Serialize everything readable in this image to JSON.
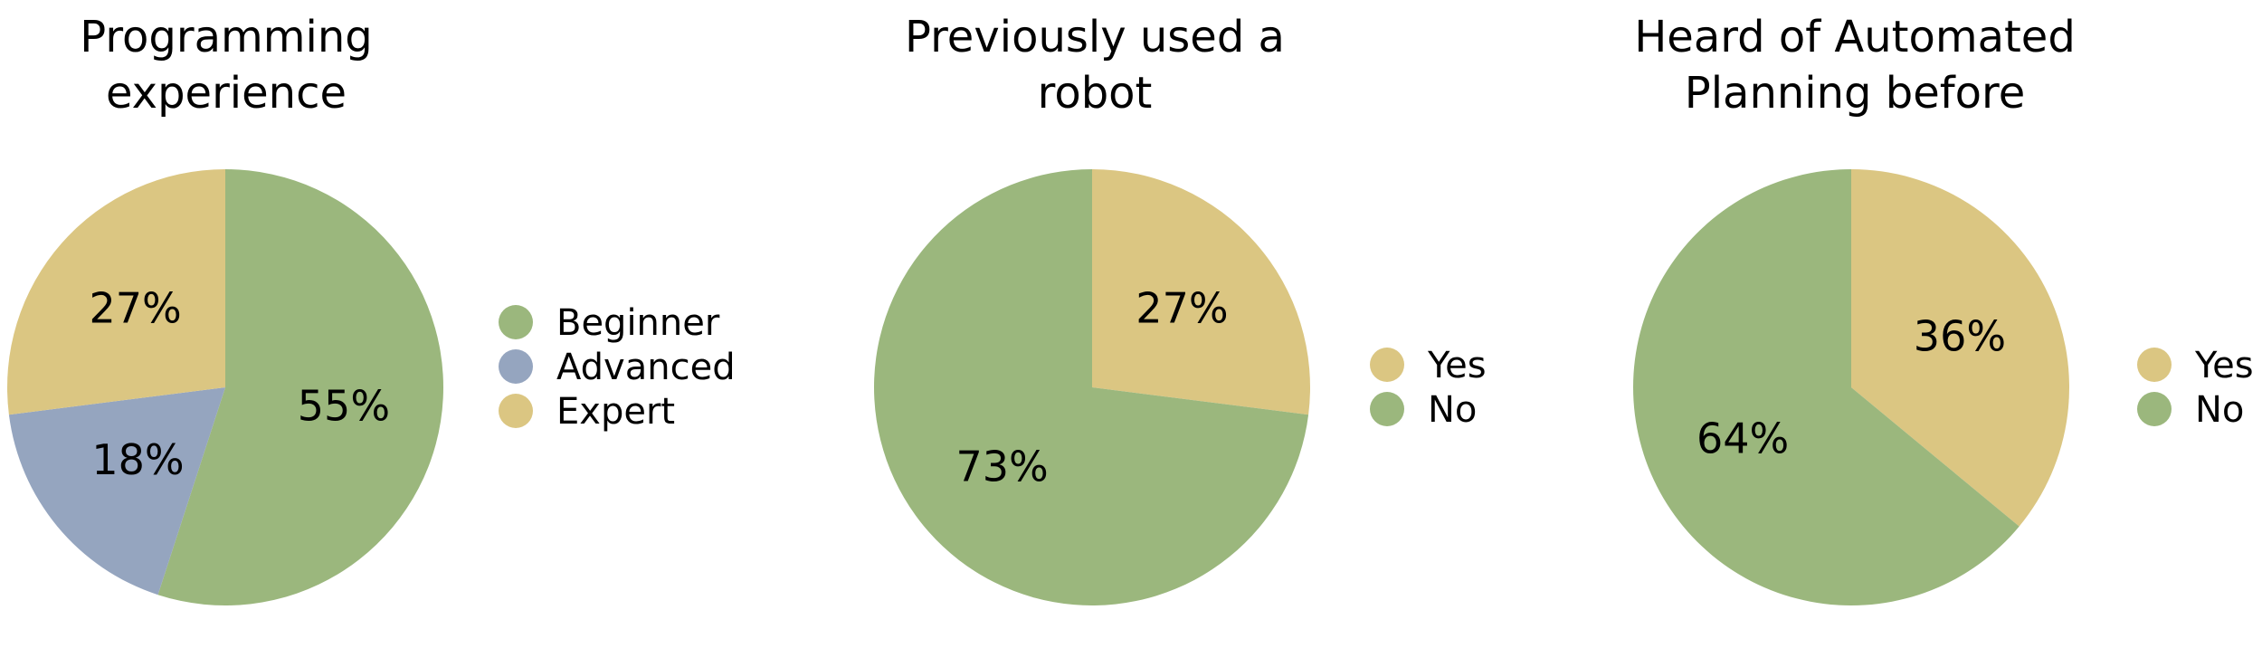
{
  "chart_data": [
    {
      "type": "pie",
      "title_lines": [
        "Programming",
        "experience"
      ],
      "slices": [
        {
          "name": "Beginner",
          "value": 55,
          "label": "55%",
          "color": "#9bb77d"
        },
        {
          "name": "Advanced",
          "value": 18,
          "label": "18%",
          "color": "#95a5bf"
        },
        {
          "name": "Expert",
          "value": 27,
          "label": "27%",
          "color": "#dbc682"
        }
      ],
      "legend": [
        {
          "name": "Beginner",
          "color": "#9bb77d"
        },
        {
          "name": "Advanced",
          "color": "#95a5bf"
        },
        {
          "name": "Expert",
          "color": "#dbc682"
        }
      ],
      "legend_position": "right"
    },
    {
      "type": "pie",
      "title_lines": [
        "Previously used a",
        "robot"
      ],
      "slices": [
        {
          "name": "Yes",
          "value": 27,
          "label": "27%",
          "color": "#dbc682"
        },
        {
          "name": "No",
          "value": 73,
          "label": "73%",
          "color": "#9bb77d"
        }
      ],
      "legend": [
        {
          "name": "Yes",
          "color": "#dbc682"
        },
        {
          "name": "No",
          "color": "#9bb77d"
        }
      ],
      "legend_position": "right"
    },
    {
      "type": "pie",
      "title_lines": [
        "Heard of Automated",
        "Planning before"
      ],
      "slices": [
        {
          "name": "Yes",
          "value": 36,
          "label": "36%",
          "color": "#dbc682"
        },
        {
          "name": "No",
          "value": 64,
          "label": "64%",
          "color": "#9bb77d"
        }
      ],
      "legend": [
        {
          "name": "Yes",
          "color": "#dbc682"
        },
        {
          "name": "No",
          "color": "#9bb77d"
        }
      ],
      "legend_position": "right"
    }
  ]
}
